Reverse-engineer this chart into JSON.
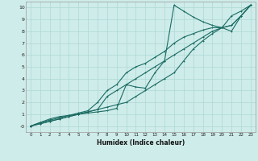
{
  "xlabel": "Humidex (Indice chaleur)",
  "xlim": [
    -0.5,
    23.5
  ],
  "ylim": [
    -0.5,
    10.5
  ],
  "xticks": [
    0,
    1,
    2,
    3,
    4,
    5,
    6,
    7,
    8,
    9,
    10,
    11,
    12,
    13,
    14,
    15,
    16,
    17,
    18,
    19,
    20,
    21,
    22,
    23
  ],
  "yticks": [
    0,
    1,
    2,
    3,
    4,
    5,
    6,
    7,
    8,
    9,
    10
  ],
  "bg_color": "#ceecea",
  "grid_color": "#aed8d4",
  "line_color": "#1a6b62",
  "line1_x": [
    0,
    1,
    2,
    3,
    4,
    5,
    6,
    7,
    8,
    9,
    10,
    11,
    12,
    13,
    14,
    15,
    16,
    17,
    18,
    19,
    20,
    21,
    22,
    23
  ],
  "line1_y": [
    0,
    0.3,
    0.6,
    0.8,
    0.9,
    1.0,
    1.1,
    1.2,
    1.3,
    1.5,
    3.5,
    3.3,
    3.2,
    4.5,
    5.5,
    10.2,
    9.7,
    9.2,
    8.8,
    8.5,
    8.3,
    9.3,
    9.7,
    10.2
  ],
  "line2_x": [
    0,
    1,
    2,
    3,
    4,
    5,
    6,
    7,
    8,
    9,
    10,
    11,
    12,
    13,
    14,
    15,
    16,
    17,
    18,
    19,
    20,
    21,
    22,
    23
  ],
  "line2_y": [
    0,
    0.3,
    0.5,
    0.7,
    0.9,
    1.1,
    1.3,
    2.0,
    3.0,
    3.5,
    4.5,
    5.0,
    5.3,
    5.8,
    6.3,
    7.0,
    7.5,
    7.8,
    8.1,
    8.3,
    8.3,
    8.0,
    9.3,
    10.2
  ],
  "line3_x": [
    0,
    1,
    2,
    3,
    4,
    5,
    6,
    7,
    8,
    9,
    10,
    11,
    12,
    13,
    14,
    15,
    16,
    17,
    18,
    19,
    20,
    21,
    22,
    23
  ],
  "line3_y": [
    0,
    0.2,
    0.4,
    0.6,
    0.8,
    1.0,
    1.2,
    1.4,
    2.5,
    3.0,
    3.5,
    4.0,
    4.5,
    5.0,
    5.5,
    6.0,
    6.5,
    7.0,
    7.5,
    8.0,
    8.3,
    8.5,
    9.3,
    10.2
  ],
  "line4_x": [
    0,
    1,
    2,
    3,
    4,
    5,
    6,
    7,
    8,
    9,
    10,
    11,
    12,
    13,
    14,
    15,
    16,
    17,
    18,
    19,
    20,
    21,
    22,
    23
  ],
  "line4_y": [
    0,
    0.2,
    0.4,
    0.6,
    0.8,
    1.0,
    1.2,
    1.4,
    1.6,
    1.8,
    2.0,
    2.5,
    3.0,
    3.5,
    4.0,
    4.5,
    5.5,
    6.5,
    7.2,
    7.8,
    8.3,
    8.5,
    9.3,
    10.2
  ]
}
